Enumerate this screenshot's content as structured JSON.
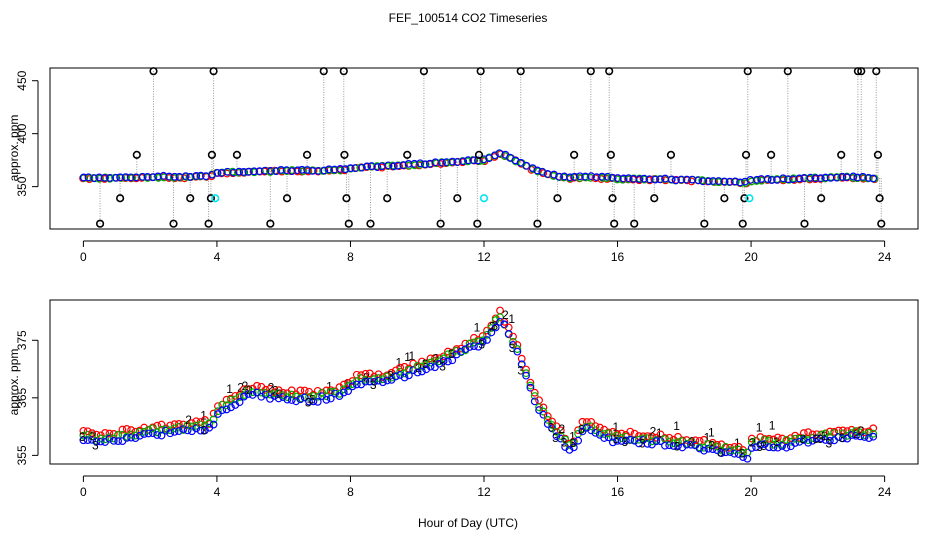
{
  "title": "FEF_100514  CO2 Timeseries",
  "xlabel": "Hour of Day (UTC)",
  "colors": {
    "red": "#ff0000",
    "green": "#00b000",
    "blue": "#0000ff",
    "cyan": "#00e5ee",
    "black": "#000000",
    "gray": "#999999"
  },
  "chart_data": [
    {
      "type": "scatter",
      "panel": "top",
      "ylabel": "approx. ppm",
      "xlim": [
        -1,
        25
      ],
      "ylim": [
        310,
        462
      ],
      "xticks": [
        "0",
        "4",
        "8",
        "12",
        "16",
        "20",
        "24"
      ],
      "xtick_values": [
        0,
        4,
        8,
        12,
        16,
        20,
        24
      ],
      "yticks": [
        "350",
        "400",
        "450"
      ],
      "ytick_values": [
        350,
        400,
        450
      ],
      "baseline": {
        "x": [
          0,
          1,
          2,
          3,
          3.8,
          3.95,
          5,
          6,
          7,
          7.8,
          8.2,
          9,
          10,
          11,
          12,
          12.5,
          13,
          13.5,
          14,
          14.5,
          15,
          15.8,
          15.95,
          17,
          18,
          19,
          19.9,
          20.05,
          21,
          22,
          23,
          23.7
        ],
        "y": [
          358,
          358,
          359,
          359,
          360,
          363,
          364,
          365,
          365,
          366,
          368,
          369,
          371,
          373,
          375,
          381,
          374,
          366,
          361,
          358,
          359,
          358,
          357,
          357,
          356,
          355,
          354,
          356,
          357,
          358,
          359,
          358
        ]
      },
      "outliers": [
        {
          "x": 0.5,
          "y": 315
        },
        {
          "x": 1.1,
          "y": 339
        },
        {
          "x": 1.6,
          "y": 380
        },
        {
          "x": 2.1,
          "y": 459
        },
        {
          "x": 2.7,
          "y": 315
        },
        {
          "x": 3.2,
          "y": 339
        },
        {
          "x": 3.75,
          "y": 315
        },
        {
          "x": 3.82,
          "y": 339
        },
        {
          "x": 3.85,
          "y": 380
        },
        {
          "x": 3.9,
          "y": 459
        },
        {
          "x": 4.6,
          "y": 380
        },
        {
          "x": 5.6,
          "y": 315
        },
        {
          "x": 6.1,
          "y": 339
        },
        {
          "x": 6.7,
          "y": 380
        },
        {
          "x": 7.2,
          "y": 459
        },
        {
          "x": 7.8,
          "y": 459
        },
        {
          "x": 7.82,
          "y": 380
        },
        {
          "x": 7.88,
          "y": 339
        },
        {
          "x": 7.95,
          "y": 315
        },
        {
          "x": 8.6,
          "y": 315
        },
        {
          "x": 9.1,
          "y": 339
        },
        {
          "x": 9.7,
          "y": 380
        },
        {
          "x": 10.2,
          "y": 459
        },
        {
          "x": 10.7,
          "y": 315
        },
        {
          "x": 11.2,
          "y": 339
        },
        {
          "x": 11.8,
          "y": 315
        },
        {
          "x": 11.85,
          "y": 380
        },
        {
          "x": 11.9,
          "y": 459
        },
        {
          "x": 13.1,
          "y": 459
        },
        {
          "x": 13.6,
          "y": 315
        },
        {
          "x": 14.2,
          "y": 339
        },
        {
          "x": 14.7,
          "y": 380
        },
        {
          "x": 15.2,
          "y": 459
        },
        {
          "x": 15.75,
          "y": 459
        },
        {
          "x": 15.8,
          "y": 380
        },
        {
          "x": 15.85,
          "y": 339
        },
        {
          "x": 15.9,
          "y": 315
        },
        {
          "x": 16.5,
          "y": 315
        },
        {
          "x": 17.1,
          "y": 339
        },
        {
          "x": 17.6,
          "y": 380
        },
        {
          "x": 18.6,
          "y": 315
        },
        {
          "x": 19.2,
          "y": 339
        },
        {
          "x": 19.75,
          "y": 315
        },
        {
          "x": 19.8,
          "y": 339
        },
        {
          "x": 19.85,
          "y": 380
        },
        {
          "x": 19.9,
          "y": 459
        },
        {
          "x": 20.6,
          "y": 380
        },
        {
          "x": 21.1,
          "y": 459
        },
        {
          "x": 21.6,
          "y": 315
        },
        {
          "x": 22.1,
          "y": 339
        },
        {
          "x": 22.7,
          "y": 380
        },
        {
          "x": 23.2,
          "y": 459
        },
        {
          "x": 23.3,
          "y": 459
        },
        {
          "x": 23.75,
          "y": 459
        },
        {
          "x": 23.8,
          "y": 380
        },
        {
          "x": 23.85,
          "y": 339
        },
        {
          "x": 23.9,
          "y": 315
        }
      ],
      "cyan_points": [
        {
          "x": 3.95,
          "y": 339
        },
        {
          "x": 12.0,
          "y": 339
        },
        {
          "x": 19.95,
          "y": 339
        }
      ]
    },
    {
      "type": "scatter",
      "panel": "bottom",
      "ylabel": "approx. ppm",
      "xlim": [
        -1,
        25
      ],
      "ylim": [
        353.5,
        382
      ],
      "xticks": [
        "0",
        "4",
        "8",
        "12",
        "16",
        "20",
        "24"
      ],
      "xtick_values": [
        0,
        4,
        8,
        12,
        16,
        20,
        24
      ],
      "yticks": [
        "355",
        "365",
        "375"
      ],
      "ytick_values": [
        355,
        365,
        375
      ],
      "series_markers": {
        "red": "1",
        "green": "2",
        "blue": "3"
      },
      "baseline": {
        "x": [
          0,
          0.5,
          1,
          2,
          3,
          3.8,
          4.1,
          5,
          6,
          7,
          7.8,
          8.2,
          9,
          10,
          11,
          12,
          12.5,
          13,
          13.5,
          14,
          14.6,
          15,
          15.8,
          15.95,
          17,
          18,
          19,
          19.9,
          20.05,
          21,
          22,
          23,
          23.7
        ],
        "y": [
          358,
          357.5,
          358,
          359,
          359.5,
          360,
          363,
          366,
          365,
          365,
          366,
          368,
          368,
          370,
          372,
          375,
          379,
          373,
          365,
          360,
          356,
          360,
          358,
          358,
          357.5,
          357,
          356,
          355,
          357,
          357,
          358,
          358.5,
          358.5
        ]
      }
    }
  ]
}
